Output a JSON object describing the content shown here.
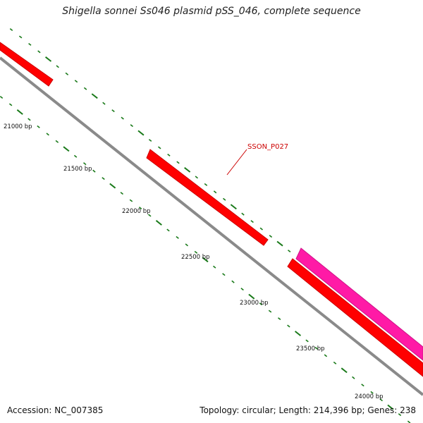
{
  "title": "Shigella sonnei Ss046 plasmid pSS_046, complete sequence",
  "footer": {
    "accession": "Accession: NC_007385",
    "topology": "Topology: circular; Length: 214,396 bp; Genes: 238"
  },
  "colors": {
    "backbone": "#8a8a8a",
    "gene_forward": "#ff0000",
    "gene_alt": "#ff1aa6",
    "tick": "#1a7a1a",
    "label_callout": "#cc0000"
  },
  "ruler": {
    "labels": [
      "21000 bp",
      "21500 bp",
      "22000 bp",
      "22500 bp",
      "23000 bp",
      "23500 bp",
      "24000 bp"
    ]
  },
  "genes": [
    {
      "name": "",
      "color": "gene_forward",
      "label": ""
    },
    {
      "name": "",
      "color": "gene_forward",
      "label": "SSON_P027"
    },
    {
      "name": "",
      "color": "gene_alt",
      "label": ""
    },
    {
      "name": "",
      "color": "gene_forward",
      "label": ""
    }
  ]
}
